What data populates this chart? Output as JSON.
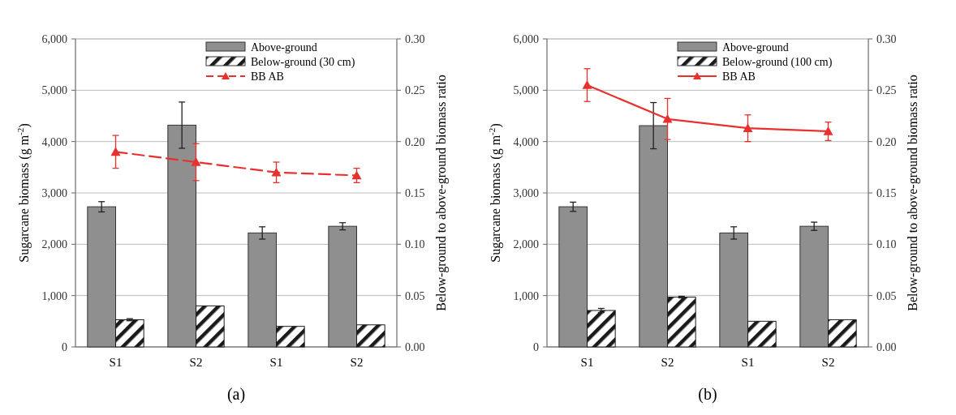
{
  "chart_data": [
    {
      "type": "bar",
      "categories": [
        "S1",
        "S2",
        "S1",
        "S2"
      ],
      "ylabel": "Sugarcane biomass (g m$^{-2}$)",
      "y2label": "Below-ground to above-ground biomass ratio",
      "ylim": [
        0,
        6000
      ],
      "yticks": [
        {
          "value": 0,
          "label": "0"
        },
        {
          "value": 1000,
          "label": "1,000"
        },
        {
          "value": 2000,
          "label": "2,000"
        },
        {
          "value": 3000,
          "label": "3,000"
        },
        {
          "value": 4000,
          "label": "4,000"
        },
        {
          "value": 5000,
          "label": "5,000"
        },
        {
          "value": 6000,
          "label": "6,000"
        }
      ],
      "y2lim": [
        0,
        0.3
      ],
      "y2ticks": [
        {
          "value": 0,
          "label": "0.00"
        },
        {
          "value": 0.05,
          "label": "0.05"
        },
        {
          "value": 0.1,
          "label": "0.10"
        },
        {
          "value": 0.15,
          "label": "0.15"
        },
        {
          "value": 0.2,
          "label": "0.20"
        },
        {
          "value": 0.25,
          "label": "0.25"
        },
        {
          "value": 0.3,
          "label": "0.30"
        }
      ],
      "grid": "y",
      "legend": "top right",
      "annotations": [
        "(a)"
      ],
      "series": [
        {
          "name": "Above-ground",
          "color": "#8f8f8f",
          "values": [
            2730,
            4320,
            2220,
            2350
          ],
          "errors": [
            100,
            450,
            120,
            70
          ]
        },
        {
          "name": "Below-ground (30 cm)",
          "color": "#1a1a1a",
          "values": [
            530,
            800,
            400,
            430
          ],
          "errors": [
            20,
            null,
            null,
            null
          ]
        },
        {
          "name": "BB AB",
          "type": "line",
          "axis": "y2",
          "color": "#e8312f",
          "marker": "triangle",
          "line_style": "dashed",
          "values": [
            0.19,
            0.18,
            0.17,
            0.167
          ],
          "errors": [
            0.016,
            0.018,
            0.01,
            0.007
          ]
        }
      ]
    },
    {
      "type": "bar",
      "categories": [
        "S1",
        "S2",
        "S1",
        "S2"
      ],
      "ylabel": "Sugarcane biomass (g m$^{-2}$)",
      "y2label": "Below-ground to above-ground biomass ratio",
      "ylim": [
        0,
        6000
      ],
      "yticks": [
        {
          "value": 0,
          "label": "0"
        },
        {
          "value": 1000,
          "label": "1,000"
        },
        {
          "value": 2000,
          "label": "2,000"
        },
        {
          "value": 3000,
          "label": "3,000"
        },
        {
          "value": 4000,
          "label": "4,000"
        },
        {
          "value": 5000,
          "label": "5,000"
        },
        {
          "value": 6000,
          "label": "6,000"
        }
      ],
      "y2lim": [
        0,
        0.3
      ],
      "y2ticks": [
        {
          "value": 0,
          "label": "0.00"
        },
        {
          "value": 0.05,
          "label": "0.05"
        },
        {
          "value": 0.1,
          "label": "0.10"
        },
        {
          "value": 0.15,
          "label": "0.15"
        },
        {
          "value": 0.2,
          "label": "0.20"
        },
        {
          "value": 0.25,
          "label": "0.25"
        },
        {
          "value": 0.3,
          "label": "0.30"
        }
      ],
      "grid": "y",
      "legend": "top right",
      "annotations": [
        "(b)"
      ],
      "series": [
        {
          "name": "Above-ground",
          "color": "#8f8f8f",
          "values": [
            2730,
            4310,
            2220,
            2350
          ],
          "errors": [
            90,
            450,
            120,
            80
          ]
        },
        {
          "name": "Below-ground (100 cm)",
          "color": "#1a1a1a",
          "values": [
            710,
            970,
            500,
            530
          ],
          "errors": [
            40,
            15,
            null,
            null
          ]
        },
        {
          "name": "BB AB",
          "type": "line",
          "axis": "y2",
          "color": "#e8312f",
          "marker": "triangle",
          "line_style": "solid",
          "values": [
            0.255,
            0.222,
            0.213,
            0.21
          ],
          "errors": [
            0.016,
            0.02,
            0.013,
            0.009
          ]
        }
      ]
    }
  ]
}
